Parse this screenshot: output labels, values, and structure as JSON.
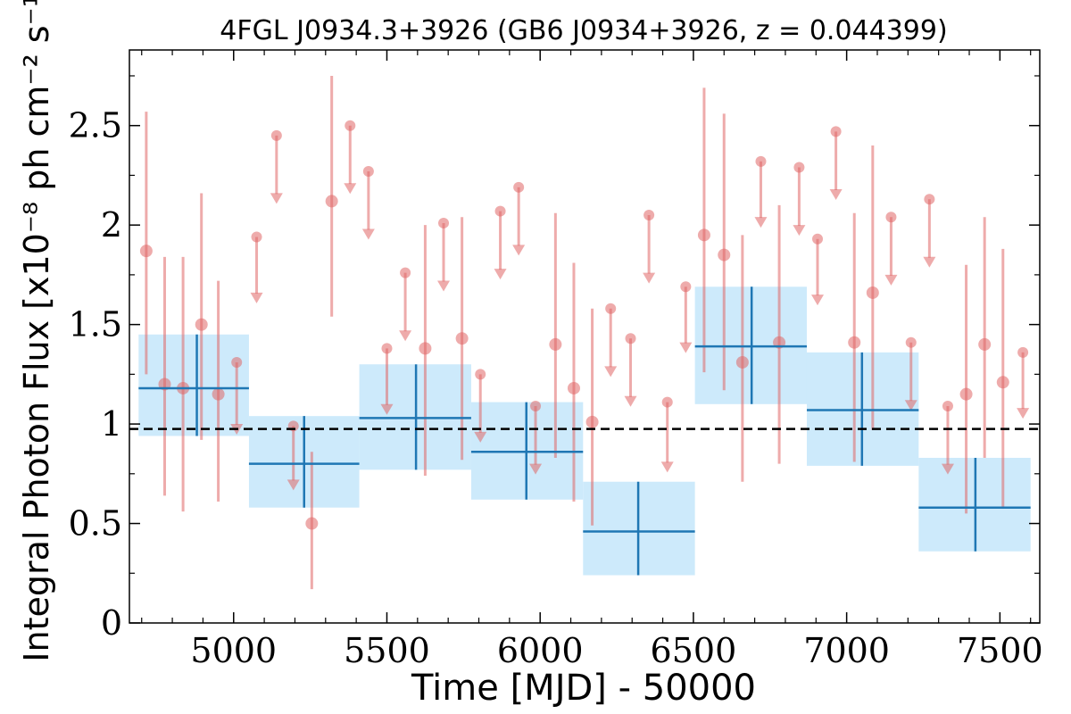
{
  "chart_data": {
    "type": "scatter",
    "title": "4FGL J0934.3+3926 (GB6 J0934+3926, z = 0.044399)",
    "xlabel": "Time [MJD] - 50000",
    "ylabel": "Integral Photon Flux [x10⁻⁸ ph cm⁻² s⁻¹]",
    "xlim": [
      4660,
      7630
    ],
    "ylim": [
      0,
      2.88
    ],
    "x_ticks": [
      5000,
      5500,
      6000,
      6500,
      7000,
      7500
    ],
    "x_tick_labels": [
      "5000",
      "5500",
      "6000",
      "6500",
      "7000",
      "7500"
    ],
    "y_ticks": [
      0,
      0.5,
      1,
      1.5,
      2,
      2.5
    ],
    "y_tick_labels": [
      "0",
      "0.5",
      "1",
      "1.5",
      "2",
      "2.5"
    ],
    "reference_line": {
      "y": 0.975,
      "style": "dashed",
      "color": "#000000"
    },
    "grid": false,
    "colors": {
      "monthly": "#e06666",
      "bins": "#1f77b4",
      "bin_band": "#cdeafb"
    },
    "series": [
      {
        "kind": "detections",
        "points": [
          {
            "x": 4715,
            "y": 1.87,
            "lo": 1.25,
            "hi": 2.57
          },
          {
            "x": 4775,
            "y": 1.2,
            "lo": 0.64,
            "hi": 1.84
          },
          {
            "x": 4835,
            "y": 1.18,
            "lo": 0.56,
            "hi": 1.84
          },
          {
            "x": 4895,
            "y": 1.5,
            "lo": 0.92,
            "hi": 2.16
          },
          {
            "x": 4950,
            "y": 1.15,
            "lo": 0.61,
            "hi": 1.72
          },
          {
            "x": 5255,
            "y": 0.5,
            "lo": 0.17,
            "hi": 0.86
          },
          {
            "x": 5320,
            "y": 2.12,
            "lo": 1.54,
            "hi": 2.75
          },
          {
            "x": 5625,
            "y": 1.38,
            "lo": 0.74,
            "hi": 2.0
          },
          {
            "x": 5745,
            "y": 1.43,
            "lo": 0.82,
            "hi": 2.04
          },
          {
            "x": 6050,
            "y": 1.4,
            "lo": 0.83,
            "hi": 2.06
          },
          {
            "x": 6110,
            "y": 1.18,
            "lo": 0.61,
            "hi": 1.81
          },
          {
            "x": 6170,
            "y": 1.01,
            "lo": 0.49,
            "hi": 1.58
          },
          {
            "x": 6535,
            "y": 1.95,
            "lo": 1.26,
            "hi": 2.69
          },
          {
            "x": 6600,
            "y": 1.85,
            "lo": 1.17,
            "hi": 2.56
          },
          {
            "x": 6660,
            "y": 1.31,
            "lo": 0.71,
            "hi": 1.95
          },
          {
            "x": 6780,
            "y": 1.41,
            "lo": 0.8,
            "hi": 2.1
          },
          {
            "x": 7025,
            "y": 1.41,
            "lo": 0.81,
            "hi": 2.06
          },
          {
            "x": 7085,
            "y": 1.66,
            "lo": 0.97,
            "hi": 2.4
          },
          {
            "x": 7390,
            "y": 1.15,
            "lo": 0.55,
            "hi": 1.8
          },
          {
            "x": 7450,
            "y": 1.4,
            "lo": 0.83,
            "hi": 2.04
          },
          {
            "x": 7510,
            "y": 1.21,
            "lo": 0.58,
            "hi": 1.88
          }
        ]
      },
      {
        "kind": "upper_limits",
        "points": [
          {
            "x": 5010,
            "y": 1.31,
            "to": 0.96
          },
          {
            "x": 5075,
            "y": 1.94,
            "to": 1.62
          },
          {
            "x": 5140,
            "y": 2.45,
            "to": 2.12
          },
          {
            "x": 5195,
            "y": 0.99,
            "to": 0.68
          },
          {
            "x": 5380,
            "y": 2.5,
            "to": 2.17
          },
          {
            "x": 5440,
            "y": 2.27,
            "to": 1.94
          },
          {
            "x": 5500,
            "y": 1.38,
            "to": 1.06
          },
          {
            "x": 5560,
            "y": 1.76,
            "to": 1.43
          },
          {
            "x": 5685,
            "y": 2.01,
            "to": 1.68
          },
          {
            "x": 5805,
            "y": 1.25,
            "to": 0.92
          },
          {
            "x": 5870,
            "y": 2.07,
            "to": 1.74
          },
          {
            "x": 5930,
            "y": 2.19,
            "to": 1.86
          },
          {
            "x": 5985,
            "y": 1.09,
            "to": 0.76
          },
          {
            "x": 6230,
            "y": 1.58,
            "to": 1.25
          },
          {
            "x": 6295,
            "y": 1.43,
            "to": 1.1
          },
          {
            "x": 6355,
            "y": 2.05,
            "to": 1.72
          },
          {
            "x": 6415,
            "y": 1.11,
            "to": 0.77
          },
          {
            "x": 6475,
            "y": 1.69,
            "to": 1.37
          },
          {
            "x": 6720,
            "y": 2.32,
            "to": 2.0
          },
          {
            "x": 6845,
            "y": 2.29,
            "to": 1.96
          },
          {
            "x": 6905,
            "y": 1.93,
            "to": 1.61
          },
          {
            "x": 6965,
            "y": 2.47,
            "to": 2.14
          },
          {
            "x": 7145,
            "y": 2.04,
            "to": 1.71
          },
          {
            "x": 7210,
            "y": 1.41,
            "to": 1.08
          },
          {
            "x": 7270,
            "y": 2.13,
            "to": 1.8
          },
          {
            "x": 7330,
            "y": 1.09,
            "to": 0.76
          },
          {
            "x": 7575,
            "y": 1.36,
            "to": 1.04
          }
        ]
      },
      {
        "kind": "binned",
        "bins": [
          {
            "x0": 4690,
            "x1": 5050,
            "xc": 4880,
            "y": 1.18,
            "lo": 0.94,
            "hi": 1.45
          },
          {
            "x0": 5050,
            "x1": 5410,
            "xc": 5230,
            "y": 0.8,
            "lo": 0.58,
            "hi": 1.04
          },
          {
            "x0": 5410,
            "x1": 5775,
            "xc": 5595,
            "y": 1.03,
            "lo": 0.77,
            "hi": 1.3
          },
          {
            "x0": 5775,
            "x1": 6140,
            "xc": 5955,
            "y": 0.86,
            "lo": 0.62,
            "hi": 1.11
          },
          {
            "x0": 6140,
            "x1": 6505,
            "xc": 6320,
            "y": 0.46,
            "lo": 0.24,
            "hi": 0.71
          },
          {
            "x0": 6505,
            "x1": 6870,
            "xc": 6690,
            "y": 1.39,
            "lo": 1.1,
            "hi": 1.69
          },
          {
            "x0": 6870,
            "x1": 7235,
            "xc": 7050,
            "y": 1.07,
            "lo": 0.79,
            "hi": 1.36
          },
          {
            "x0": 7235,
            "x1": 7600,
            "xc": 7420,
            "y": 0.58,
            "lo": 0.36,
            "hi": 0.83
          }
        ]
      }
    ]
  }
}
